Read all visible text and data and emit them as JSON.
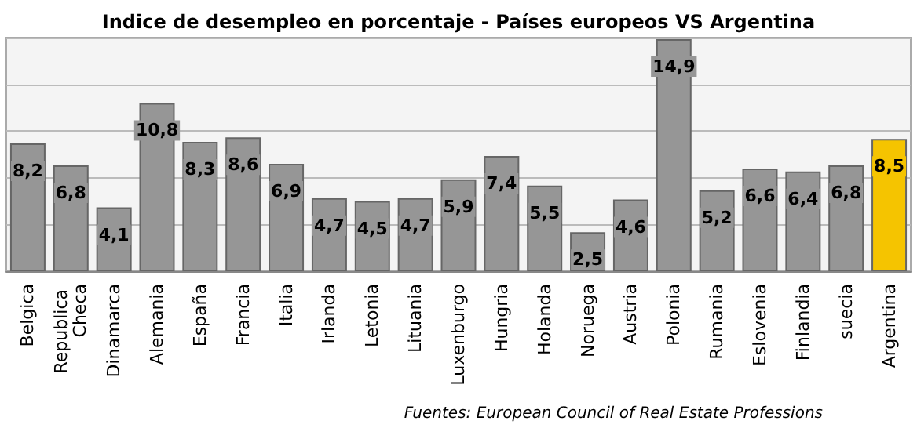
{
  "chart_data": {
    "type": "bar",
    "title": "Indice de desempleo en porcentaje - Países europeos VS Argentina",
    "categories": [
      "Belgica",
      "Republica Checa",
      "Dinamarca",
      "Alemania",
      "España",
      "Francia",
      "Italia",
      "Irlanda",
      "Letonia",
      "Lituania",
      "Luxenburgo",
      "Hungria",
      "Holanda",
      "Noruega",
      "Austria",
      "Polonia",
      "Rumania",
      "Eslovenia",
      "Finlandia",
      "suecia",
      "Argentina"
    ],
    "values": [
      8.2,
      6.8,
      4.1,
      10.8,
      8.3,
      8.6,
      6.9,
      4.7,
      4.5,
      4.7,
      5.9,
      7.4,
      5.5,
      2.5,
      4.6,
      14.9,
      5.2,
      6.6,
      6.4,
      6.8,
      8.5
    ],
    "colors": [
      "#969696",
      "#969696",
      "#969696",
      "#969696",
      "#969696",
      "#969696",
      "#969696",
      "#969696",
      "#969696",
      "#969696",
      "#969696",
      "#969696",
      "#969696",
      "#969696",
      "#969696",
      "#969696",
      "#969696",
      "#969696",
      "#969696",
      "#969696",
      "#f5c400"
    ],
    "value_labels": [
      "8,2",
      "6,8",
      "4,1",
      "10,8",
      "8,3",
      "8,6",
      "6,9",
      "4,7",
      "4,5",
      "4,7",
      "5,9",
      "7,4",
      "5,5",
      "2,5",
      "4,6",
      "14,9",
      "5,2",
      "6,6",
      "6,4",
      "6,8",
      "8,5"
    ],
    "tick_labels": "x",
    "grid": "y",
    "annotations": [
      "Fuentes: European Council of Real Estate Professions"
    ]
  }
}
